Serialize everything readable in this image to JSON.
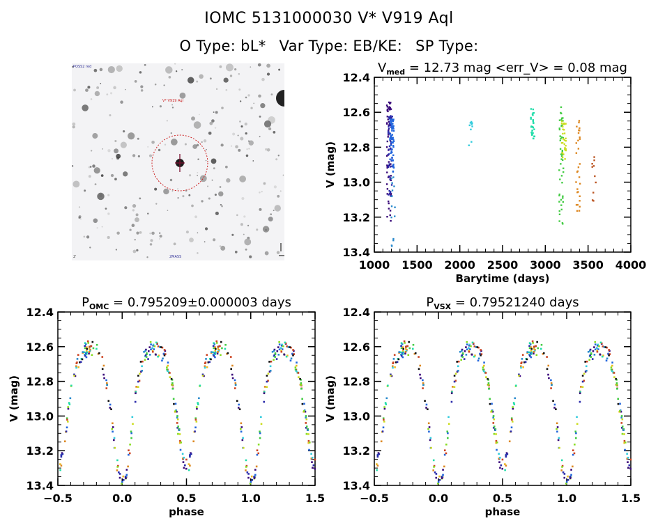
{
  "header": {
    "line1": "IOMC 5131000030    V* V919 Aql",
    "o_type": "O Type: bL*",
    "var_type": "Var Type: EB/KE:",
    "sp_type": "SP Type:"
  },
  "sky_image": {
    "label_top_left": "POSS2 red",
    "target_label": "V* V919 Aql",
    "label_bottom_left": "2'",
    "label_bottom_center": "2MASS",
    "compass_labels": [
      "N",
      "E"
    ]
  },
  "chart_data": [
    {
      "id": "time-series",
      "type": "scatter",
      "title_main": "V",
      "title_sub": "med",
      "title_rest": " = 12.73 mag <err_V> = 0.08 mag",
      "xlabel": "Barytime (days)",
      "ylabel": "V (mag)",
      "xlim": [
        1000,
        4000
      ],
      "ylim": [
        12.4,
        13.4
      ],
      "y_inverted": true,
      "xticks": [
        "1000",
        "1500",
        "2000",
        "2500",
        "3000",
        "3500",
        "4000"
      ],
      "yticks": [
        "12.4",
        "12.6",
        "12.8",
        "13.0",
        "13.2",
        "13.4"
      ],
      "groups": [
        {
          "x": 1170,
          "color": "#3a0a7a",
          "vmin": 12.54,
          "vmax": 13.26,
          "n": 60
        },
        {
          "x": 1185,
          "color": "#2a2aaa",
          "vmin": 12.62,
          "vmax": 13.1,
          "n": 50
        },
        {
          "x": 1205,
          "color": "#2266dd",
          "vmin": 12.64,
          "vmax": 12.95,
          "n": 60
        },
        {
          "x": 1215,
          "color": "#2a8acc",
          "vmin": 12.96,
          "vmax": 13.37,
          "n": 14
        },
        {
          "x": 2125,
          "color": "#33ccdd",
          "vmin": 12.65,
          "vmax": 12.79,
          "n": 10
        },
        {
          "x": 2850,
          "color": "#22ddaa",
          "vmin": 12.58,
          "vmax": 12.77,
          "n": 28
        },
        {
          "x": 3185,
          "color": "#44cc44",
          "vmin": 12.57,
          "vmax": 13.25,
          "n": 50
        },
        {
          "x": 3215,
          "color": "#ccdd22",
          "vmin": 12.65,
          "vmax": 12.87,
          "n": 30
        },
        {
          "x": 3380,
          "color": "#dd8822",
          "vmin": 12.64,
          "vmax": 13.19,
          "n": 30
        },
        {
          "x": 3570,
          "color": "#bb5522",
          "vmin": 12.77,
          "vmax": 13.14,
          "n": 10
        }
      ]
    },
    {
      "id": "phase-omc",
      "type": "scatter",
      "title_main": "P",
      "title_sub": "OMC",
      "title_rest": " = 0.795209±0.000003 days",
      "xlabel": "phase",
      "ylabel": "V (mag)",
      "xlim": [
        -0.5,
        1.5
      ],
      "ylim": [
        12.4,
        13.4
      ],
      "y_inverted": true,
      "xticks": [
        "−0.5",
        "0.0",
        "0.5",
        "1.0",
        "1.5"
      ],
      "yticks": [
        "12.4",
        "12.6",
        "12.8",
        "13.0",
        "13.2",
        "13.4"
      ],
      "period_days": 0.795209,
      "period_err": 3e-06
    },
    {
      "id": "phase-vsx",
      "type": "scatter",
      "title_main": "P",
      "title_sub": "VSX",
      "title_rest": " = 0.79521240 days",
      "xlabel": "phase",
      "ylabel": "V (mag)",
      "xlim": [
        -0.5,
        1.5
      ],
      "ylim": [
        12.4,
        13.4
      ],
      "y_inverted": true,
      "xticks": [
        "−0.5",
        "0.0",
        "0.5",
        "1.0",
        "1.5"
      ],
      "yticks": [
        "12.4",
        "12.6",
        "12.8",
        "13.0",
        "13.2",
        "13.4"
      ],
      "period_days": 0.7952124
    }
  ],
  "light_curve_model": {
    "description": "Eclipsing binary: maxima ~12.62 at phase 0.25/0.75, primary minimum ~13.35 at phase 0.0, secondary minimum ~13.25 at phase 0.5",
    "max_mag": 12.65,
    "primary_min_mag": 13.35,
    "secondary_min_mag": 13.25
  }
}
